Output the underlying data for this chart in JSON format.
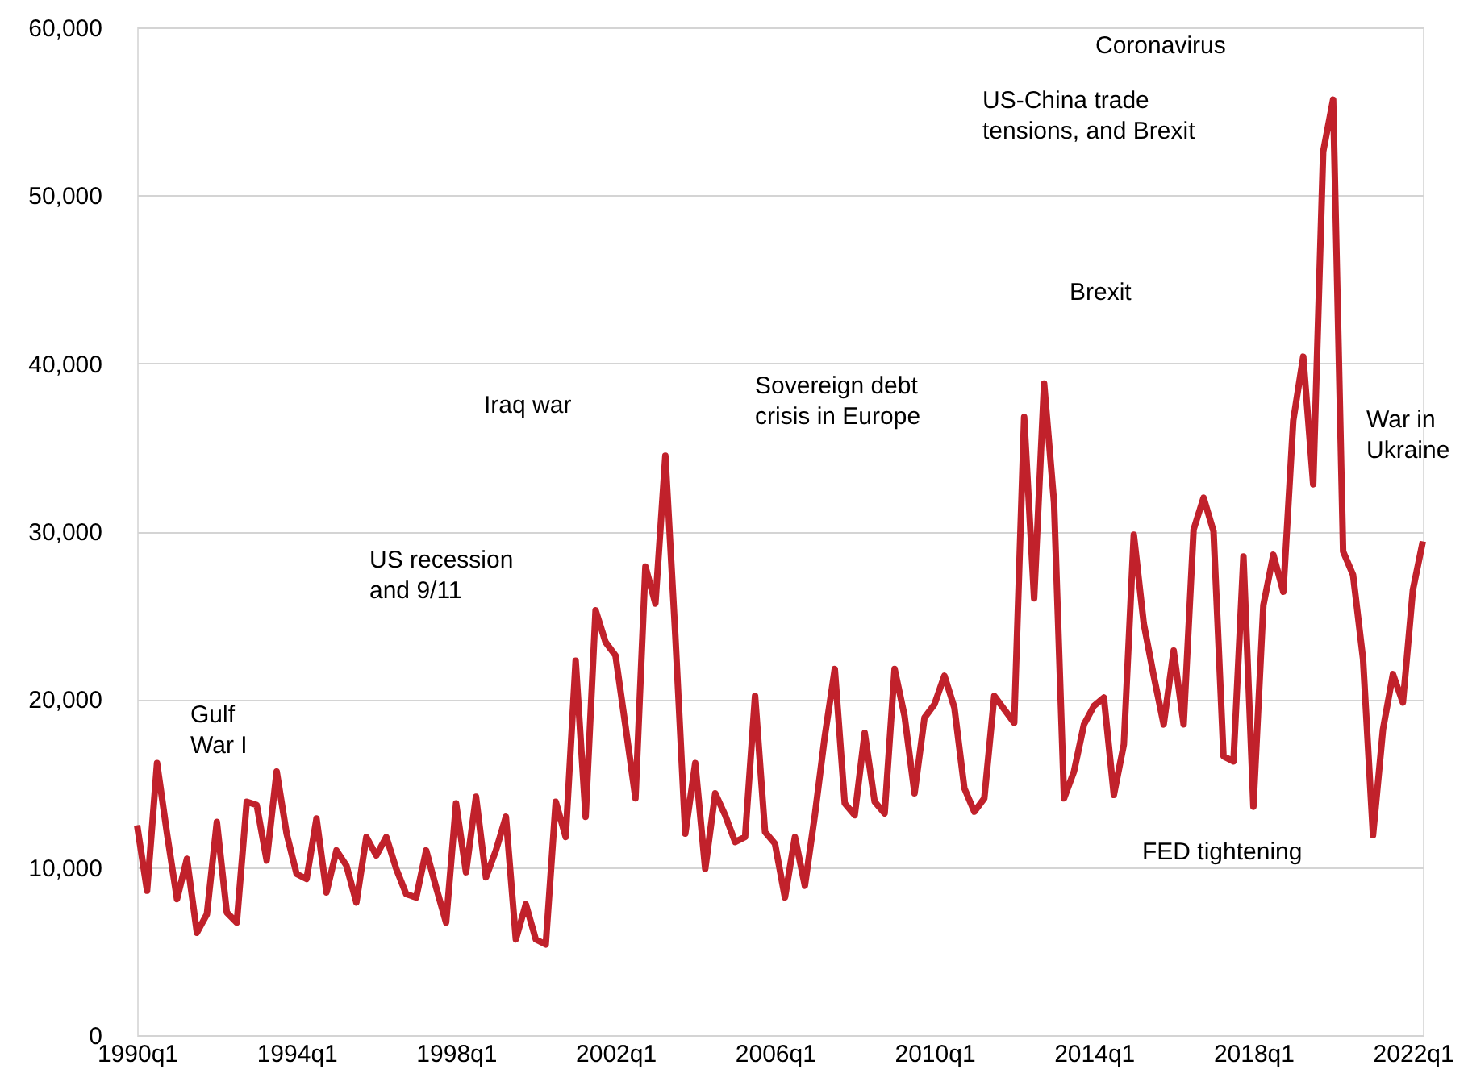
{
  "chart_data": {
    "type": "line",
    "categories": [
      "1990q1",
      null,
      null,
      null,
      null,
      null,
      null,
      null,
      null,
      null,
      null,
      null,
      null,
      null,
      null,
      null,
      "1994q1",
      null,
      null,
      null,
      null,
      null,
      null,
      null,
      null,
      null,
      null,
      null,
      null,
      null,
      null,
      null,
      "1998q1",
      null,
      null,
      null,
      null,
      null,
      null,
      null,
      null,
      null,
      null,
      null,
      null,
      null,
      null,
      null,
      "2002q1",
      null,
      null,
      null,
      null,
      null,
      null,
      null,
      null,
      null,
      null,
      null,
      null,
      null,
      null,
      null,
      "2006q1",
      null,
      null,
      null,
      null,
      null,
      null,
      null,
      null,
      null,
      null,
      null,
      null,
      null,
      null,
      null,
      "2010q1",
      null,
      null,
      null,
      null,
      null,
      null,
      null,
      null,
      null,
      null,
      null,
      null,
      null,
      null,
      null,
      "2014q1",
      null,
      null,
      null,
      null,
      null,
      null,
      null,
      null,
      null,
      null,
      null,
      null,
      null,
      null,
      null,
      "2018q1",
      null,
      null,
      null,
      null,
      null,
      null,
      null,
      null,
      null,
      null,
      null,
      null,
      null,
      null,
      null,
      "2022q1",
      null
    ],
    "series": [
      {
        "color": "#c1212b",
        "values": [
          12500,
          8600,
          16200,
          12000,
          8100,
          10500,
          6100,
          7200,
          12700,
          7300,
          6700,
          13900,
          13700,
          10400,
          15700,
          12000,
          9600,
          9300,
          12900,
          8500,
          11000,
          10100,
          7900,
          11800,
          10700,
          11800,
          9900,
          8400,
          8200,
          11000,
          8800,
          6700,
          13800,
          9700,
          14200,
          9400,
          11000,
          13000,
          5700,
          7800,
          5700,
          5400,
          13900,
          11800,
          22300,
          13000,
          25300,
          23400,
          22600,
          18400,
          14100,
          27900,
          25700,
          34500,
          23800,
          12000,
          16200,
          9900,
          14400,
          13100,
          11500,
          11800,
          20200,
          12100,
          11400,
          8200,
          11800,
          8900,
          13100,
          17800,
          21800,
          13800,
          13100,
          18000,
          13900,
          13200,
          21800,
          19000,
          14400,
          18900,
          19700,
          21400,
          19500,
          14700,
          13300,
          14100,
          20200,
          19400,
          18600,
          36800,
          26000,
          38800,
          31700,
          14100,
          15700,
          18500,
          19600,
          20100,
          14300,
          17300,
          29800,
          24500,
          21400,
          18500,
          22900,
          18500,
          30100,
          32000,
          30000,
          16600,
          16300,
          28500,
          13600,
          25600,
          28600,
          26400,
          36600,
          40400,
          32800,
          52600,
          55700,
          28800,
          27400,
          22400,
          11900,
          18200,
          21500,
          19800,
          26500,
          29400
        ]
      }
    ],
    "ylim": [
      0,
      60000
    ],
    "yticks": [
      {
        "value": 0,
        "label": "0"
      },
      {
        "value": 10000,
        "label": "10,000"
      },
      {
        "value": 20000,
        "label": "20,000"
      },
      {
        "value": 30000,
        "label": "30,000"
      },
      {
        "value": 40000,
        "label": "40,000"
      },
      {
        "value": 50000,
        "label": "50,000"
      },
      {
        "value": 60000,
        "label": "60,000"
      }
    ],
    "grid": "y",
    "marker": "none",
    "line_style": "solid",
    "annotations": [
      "Gulf\nWar I",
      "US recession\nand 9/11",
      "Iraq war",
      "Sovereign debt\ncrisis in Europe",
      "Brexit",
      "US-China trade\ntensions, and Brexit",
      "Coronavirus",
      "War in\nUkraine",
      "FED tightening"
    ]
  }
}
